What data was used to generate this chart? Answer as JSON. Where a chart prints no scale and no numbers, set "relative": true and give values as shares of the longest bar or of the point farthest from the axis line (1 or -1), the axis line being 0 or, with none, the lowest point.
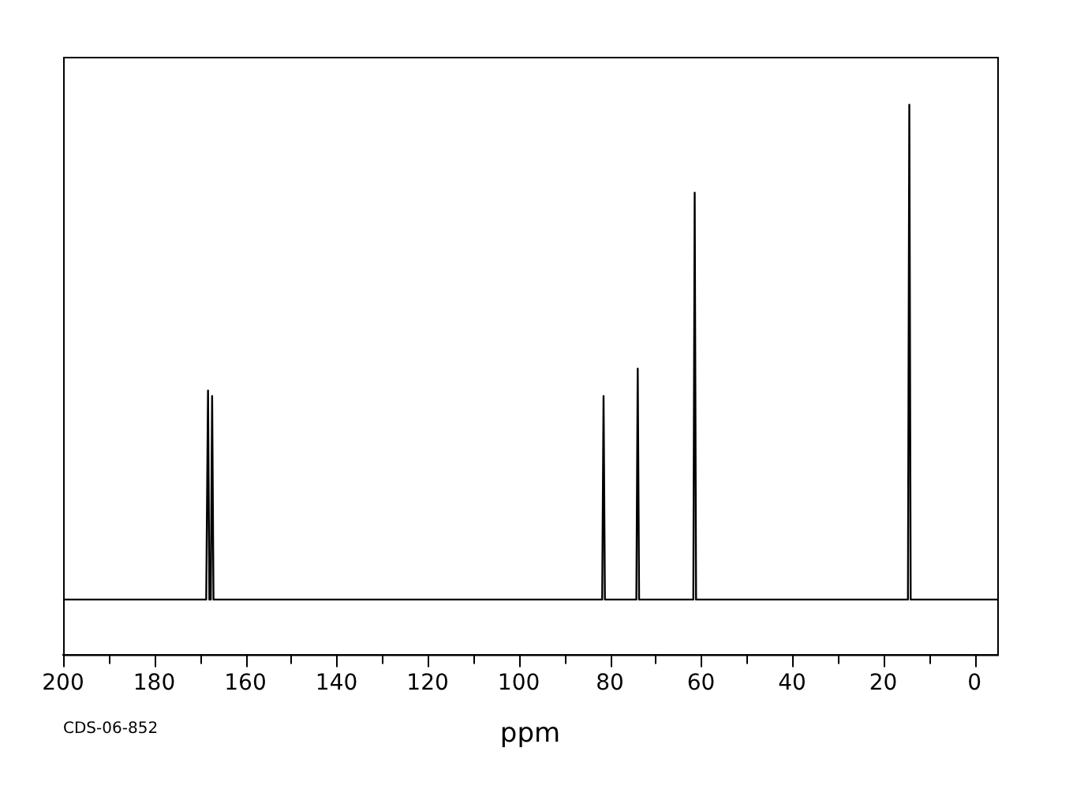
{
  "chart_data": {
    "type": "line",
    "xlabel": "ppm",
    "relative": true,
    "x": [
      200,
      168.6,
      168.2,
      167.9,
      167.6,
      167.3,
      167.0,
      81.7,
      81.4,
      81.1,
      74.2,
      73.9,
      73.6,
      61.7,
      61.4,
      61.1,
      14.6,
      14.3,
      14.0,
      -5
    ],
    "series": [
      {
        "color": "#000000",
        "values": [
          0.1,
          0.1,
          0.48,
          0.1,
          0.1,
          0.47,
          0.1,
          0.1,
          0.47,
          0.1,
          0.1,
          0.52,
          0.1,
          0.1,
          0.84,
          0.1,
          0.1,
          1,
          0.1,
          0.1
        ]
      }
    ],
    "xlim": [
      200,
      -5
    ],
    "xticks": [
      200,
      {
        "value": 190,
        "label": null
      },
      180,
      {
        "value": 170,
        "label": null
      },
      160,
      {
        "value": 150,
        "label": null
      },
      140,
      {
        "value": 130,
        "label": null
      },
      120,
      {
        "value": 110,
        "label": null
      },
      100,
      {
        "value": 90,
        "label": null
      },
      80,
      {
        "value": 70,
        "label": null
      },
      60,
      {
        "value": 50,
        "label": null
      },
      40,
      {
        "value": 30,
        "label": null
      },
      20,
      {
        "value": 10,
        "label": null
      },
      0
    ],
    "grid": false,
    "legend": false,
    "marker": "none",
    "line_style": "solid",
    "annotations": [
      "CDS-06-852"
    ]
  }
}
